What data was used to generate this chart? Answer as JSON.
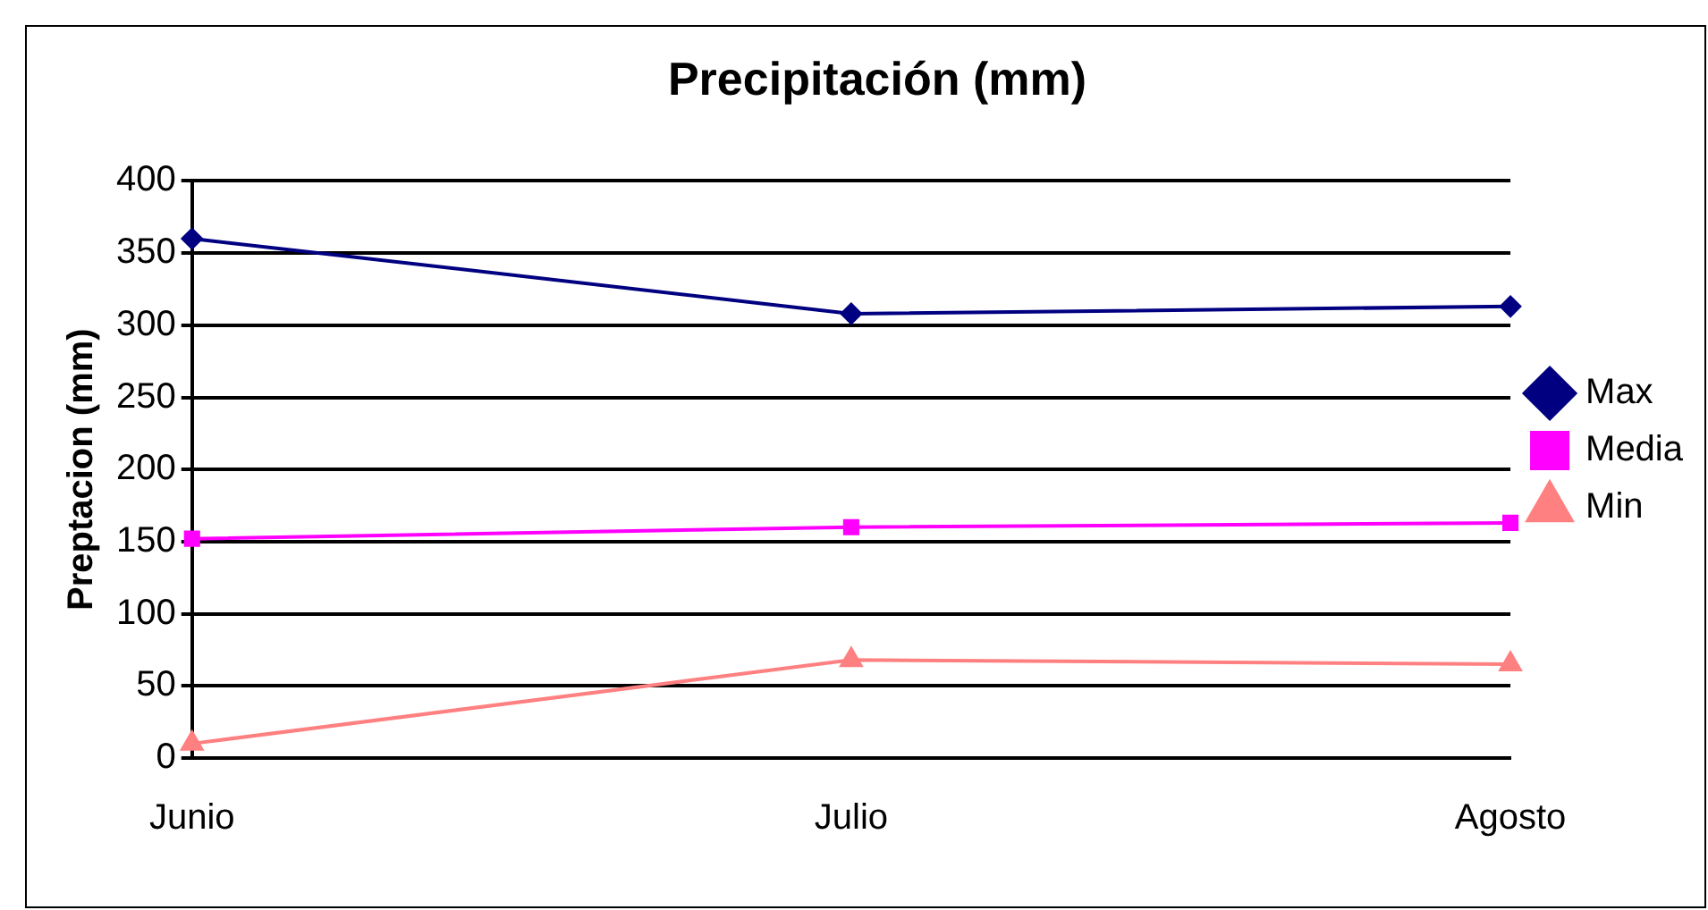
{
  "chart_data": {
    "type": "line",
    "title": "Precipitación (mm)",
    "ylabel": "Preptacion (mm)",
    "categories": [
      "Junio",
      "Julio",
      "Agosto"
    ],
    "series": [
      {
        "name": "Max",
        "color": "#000080",
        "marker": "diamond",
        "values": [
          360,
          308,
          313
        ]
      },
      {
        "name": "Media",
        "color": "#ff00ff",
        "marker": "square",
        "values": [
          152,
          160,
          163
        ]
      },
      {
        "name": "Min",
        "color": "#ff8080",
        "marker": "triangle",
        "values": [
          10,
          68,
          65
        ]
      }
    ],
    "ylim": [
      0,
      400
    ],
    "yticks": [
      0,
      50,
      100,
      150,
      200,
      250,
      300,
      350,
      400
    ],
    "grid": "y",
    "legend": "right"
  }
}
